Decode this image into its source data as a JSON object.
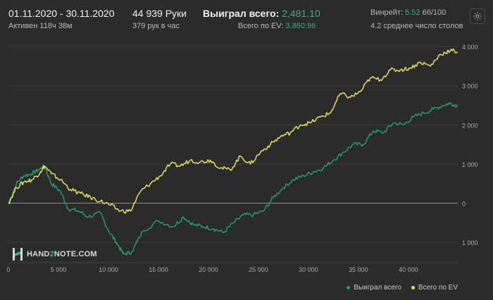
{
  "header": {
    "date_range": "01.11.2020 - 30.11.2020",
    "active": "Активен 118ч 38м",
    "hands": "44 939 Руки",
    "hands_per_hour": "379 рук в час",
    "won_label": "Выиграл всего:",
    "won_value": "2,481.10",
    "ev_label": "Всего по EV:",
    "ev_value": "3,860.96",
    "winrate_label": "Винрейт:",
    "winrate_value": "5.52",
    "winrate_suffix": "66/100",
    "tables_avg": "4.2 среднее число столов",
    "settings_icon": "gear-icon"
  },
  "logo": {
    "text_a": "HAND",
    "text_b": "2",
    "text_c": "NOTE.COM"
  },
  "legend": {
    "won": "Выиграл всего",
    "ev": "Всего по EV"
  },
  "colors": {
    "won": "#1f9e6a",
    "ev": "#e4e05a",
    "accent": "#2fb37f"
  },
  "chart_data": {
    "type": "line",
    "xlabel": "",
    "ylabel": "",
    "xlim": [
      0,
      44939
    ],
    "ylim": [
      -1500,
      4000
    ],
    "x_ticks": [
      0,
      5000,
      10000,
      15000,
      20000,
      25000,
      30000,
      35000,
      40000
    ],
    "x_tick_labels": [
      "0",
      "5 000",
      "10 000",
      "15 000",
      "20 000",
      "25 000",
      "30 000",
      "35 000",
      "40 000"
    ],
    "y_ticks": [
      4000,
      3000,
      2000,
      1000,
      0,
      -1000
    ],
    "y_tick_labels": [
      "4 000",
      "3 000",
      "2 000",
      "1 000",
      "0",
      "1 000"
    ],
    "series": [
      {
        "name": "Выиграл всего",
        "color": "#1f9e6a",
        "points": [
          [
            0,
            0
          ],
          [
            800,
            500
          ],
          [
            1500,
            700
          ],
          [
            2300,
            750
          ],
          [
            3000,
            850
          ],
          [
            3600,
            950
          ],
          [
            4300,
            500
          ],
          [
            5200,
            300
          ],
          [
            6000,
            -150
          ],
          [
            7000,
            -200
          ],
          [
            8000,
            -350
          ],
          [
            9200,
            -250
          ],
          [
            10000,
            -700
          ],
          [
            10800,
            -1000
          ],
          [
            11500,
            -1300
          ],
          [
            12300,
            -1250
          ],
          [
            13500,
            -700
          ],
          [
            15000,
            -450
          ],
          [
            16500,
            -600
          ],
          [
            17500,
            -350
          ],
          [
            18500,
            -550
          ],
          [
            19500,
            -600
          ],
          [
            20500,
            -650
          ],
          [
            21500,
            -750
          ],
          [
            22500,
            -500
          ],
          [
            23500,
            -300
          ],
          [
            24500,
            -300
          ],
          [
            25500,
            -200
          ],
          [
            26500,
            150
          ],
          [
            27500,
            400
          ],
          [
            28500,
            600
          ],
          [
            29500,
            700
          ],
          [
            30500,
            800
          ],
          [
            31500,
            900
          ],
          [
            32500,
            1100
          ],
          [
            33500,
            1300
          ],
          [
            34500,
            1500
          ],
          [
            35500,
            1500
          ],
          [
            36500,
            1850
          ],
          [
            37500,
            1800
          ],
          [
            38500,
            2050
          ],
          [
            39500,
            2000
          ],
          [
            40500,
            2200
          ],
          [
            41500,
            2300
          ],
          [
            42500,
            2400
          ],
          [
            43500,
            2500
          ],
          [
            44200,
            2550
          ],
          [
            44939,
            2481
          ]
        ]
      },
      {
        "name": "Всего по EV",
        "color": "#e4e05a",
        "points": [
          [
            0,
            0
          ],
          [
            800,
            400
          ],
          [
            1600,
            550
          ],
          [
            2400,
            600
          ],
          [
            3200,
            800
          ],
          [
            3600,
            950
          ],
          [
            4300,
            750
          ],
          [
            5200,
            600
          ],
          [
            6200,
            350
          ],
          [
            7200,
            250
          ],
          [
            8200,
            150
          ],
          [
            9200,
            50
          ],
          [
            10200,
            -50
          ],
          [
            11200,
            -200
          ],
          [
            12200,
            -200
          ],
          [
            13200,
            300
          ],
          [
            14200,
            500
          ],
          [
            15200,
            700
          ],
          [
            16200,
            1000
          ],
          [
            17200,
            950
          ],
          [
            18200,
            1100
          ],
          [
            19200,
            1050
          ],
          [
            20200,
            1100
          ],
          [
            21200,
            900
          ],
          [
            22200,
            850
          ],
          [
            23200,
            1200
          ],
          [
            24200,
            1000
          ],
          [
            25200,
            1300
          ],
          [
            26200,
            1500
          ],
          [
            27200,
            1700
          ],
          [
            28200,
            1800
          ],
          [
            29200,
            2000
          ],
          [
            30200,
            2050
          ],
          [
            31200,
            2200
          ],
          [
            32200,
            2300
          ],
          [
            33200,
            2800
          ],
          [
            34200,
            2700
          ],
          [
            35200,
            2850
          ],
          [
            36200,
            3200
          ],
          [
            37200,
            3150
          ],
          [
            38200,
            3400
          ],
          [
            39200,
            3400
          ],
          [
            40200,
            3450
          ],
          [
            41200,
            3600
          ],
          [
            42200,
            3500
          ],
          [
            43200,
            3800
          ],
          [
            44200,
            3900
          ],
          [
            44939,
            3860
          ]
        ]
      }
    ],
    "grid": true,
    "legend_position": "bottom-right"
  }
}
